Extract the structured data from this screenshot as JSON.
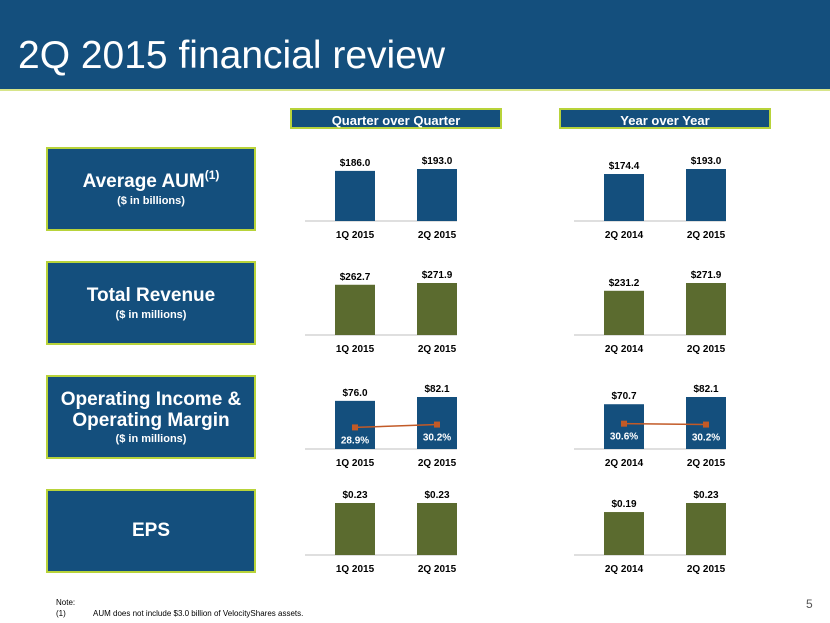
{
  "title": "2Q 2015 financial review",
  "column_headers": [
    "Quarter over Quarter",
    "Year over Year"
  ],
  "rows": [
    {
      "main_lines": [
        "Average AUM"
      ],
      "sup": "(1)",
      "sub": "($ in billions)"
    },
    {
      "main_lines": [
        "Total Revenue"
      ],
      "sub": "($ in millions)"
    },
    {
      "main_lines": [
        "Operating Income &",
        "Operating Margin"
      ],
      "sub": "($ in millions)"
    },
    {
      "main_lines": [
        "EPS"
      ],
      "sub": ""
    }
  ],
  "colors": {
    "blue": "#144f7d",
    "green": "#5b6b2f",
    "accent": "#b8d33a",
    "line": "#c25a27"
  },
  "chart_data": [
    {
      "type": "bar",
      "metric": "Average AUM",
      "comparison": "Quarter over Quarter",
      "categories": [
        "1Q 2015",
        "2Q 2015"
      ],
      "values": [
        186.0,
        193.0
      ],
      "labels": [
        "$186.0",
        "$193.0"
      ],
      "color": "blue",
      "ylim": [
        0,
        193.0
      ]
    },
    {
      "type": "bar",
      "metric": "Average AUM",
      "comparison": "Year over Year",
      "categories": [
        "2Q 2014",
        "2Q 2015"
      ],
      "values": [
        174.4,
        193.0
      ],
      "labels": [
        "$174.4",
        "$193.0"
      ],
      "color": "blue",
      "ylim": [
        0,
        193.0
      ]
    },
    {
      "type": "bar",
      "metric": "Total Revenue",
      "comparison": "Quarter over Quarter",
      "categories": [
        "1Q 2015",
        "2Q 2015"
      ],
      "values": [
        262.7,
        271.9
      ],
      "labels": [
        "$262.7",
        "$271.9"
      ],
      "color": "green",
      "ylim": [
        0,
        271.9
      ]
    },
    {
      "type": "bar",
      "metric": "Total Revenue",
      "comparison": "Year over Year",
      "categories": [
        "2Q 2014",
        "2Q 2015"
      ],
      "values": [
        231.2,
        271.9
      ],
      "labels": [
        "$231.2",
        "$271.9"
      ],
      "color": "green",
      "ylim": [
        0,
        271.9
      ]
    },
    {
      "type": "bar",
      "metric": "Operating Income & Operating Margin",
      "comparison": "Quarter over Quarter",
      "categories": [
        "1Q 2015",
        "2Q 2015"
      ],
      "values": [
        76.0,
        82.1
      ],
      "labels": [
        "$76.0",
        "$82.1"
      ],
      "color": "blue",
      "ylim": [
        0,
        82.1
      ],
      "line_series": {
        "values": [
          28.9,
          30.2
        ],
        "labels": [
          "28.9%",
          "30.2%"
        ]
      }
    },
    {
      "type": "bar",
      "metric": "Operating Income & Operating Margin",
      "comparison": "Year over Year",
      "categories": [
        "2Q 2014",
        "2Q 2015"
      ],
      "values": [
        70.7,
        82.1
      ],
      "labels": [
        "$70.7",
        "$82.1"
      ],
      "color": "blue",
      "ylim": [
        0,
        82.1
      ],
      "line_series": {
        "values": [
          30.6,
          30.2
        ],
        "labels": [
          "30.6%",
          "30.2%"
        ]
      }
    },
    {
      "type": "bar",
      "metric": "EPS",
      "comparison": "Quarter over Quarter",
      "categories": [
        "1Q 2015",
        "2Q 2015"
      ],
      "values": [
        0.23,
        0.23
      ],
      "labels": [
        "$0.23",
        "$0.23"
      ],
      "color": "green",
      "ylim": [
        0,
        0.23
      ]
    },
    {
      "type": "bar",
      "metric": "EPS",
      "comparison": "Year over Year",
      "categories": [
        "2Q 2014",
        "2Q 2015"
      ],
      "values": [
        0.19,
        0.23
      ],
      "labels": [
        "$0.19",
        "$0.23"
      ],
      "color": "green",
      "ylim": [
        0,
        0.23
      ]
    }
  ],
  "note": {
    "label": "Note:",
    "number": "(1)",
    "text": "AUM does not include $3.0 billion of VelocityShares assets."
  },
  "page_number": "5"
}
